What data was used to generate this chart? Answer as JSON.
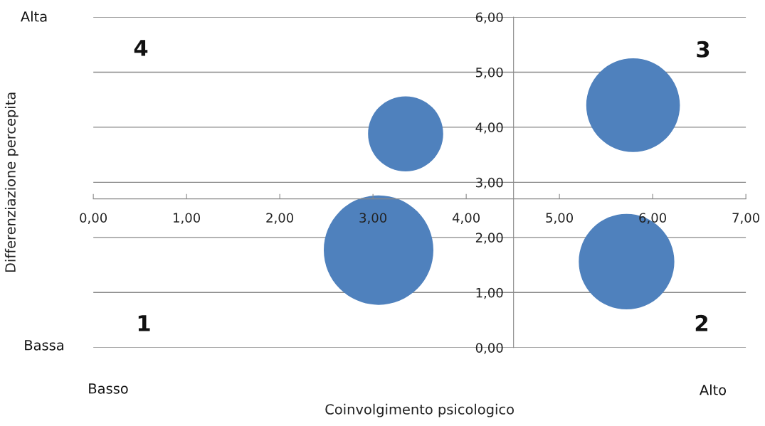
{
  "chart_data": {
    "type": "bubble",
    "xlabel": "Coinvolgimento psicologico",
    "ylabel": "Differenziazione percepita",
    "annotations": [
      "Alta",
      "Bassa",
      "Basso",
      "Alto",
      "4",
      "3",
      "1",
      "2"
    ],
    "x": [
      3.35,
      5.79,
      3.06,
      5.72
    ],
    "values": [
      3.88,
      4.4,
      1.77,
      1.56
    ],
    "sizes": [
      0.47,
      0.73,
      1,
      0.76
    ],
    "color": "#4f81bd",
    "xlim": [
      0,
      7
    ],
    "ylim": [
      0,
      6
    ],
    "xticks": [
      {
        "value": 0,
        "label": "0,00"
      },
      {
        "value": 1,
        "label": "1,00"
      },
      {
        "value": 2,
        "label": "2,00"
      },
      {
        "value": 3,
        "label": "3,00"
      },
      {
        "value": 4,
        "label": "4,00"
      },
      {
        "value": 5,
        "label": "5,00"
      },
      {
        "value": 6,
        "label": "6,00"
      },
      {
        "value": 7,
        "label": "7,00"
      }
    ],
    "yticks": [
      {
        "value": 0,
        "label": "0,00"
      },
      {
        "value": 1,
        "label": "1,00"
      },
      {
        "value": 2,
        "label": "2,00"
      },
      {
        "value": 3,
        "label": "3,00"
      },
      {
        "value": 4,
        "label": "4,00"
      },
      {
        "value": 5,
        "label": "5,00"
      },
      {
        "value": 6,
        "label": "6,00"
      }
    ],
    "grid": "y"
  }
}
